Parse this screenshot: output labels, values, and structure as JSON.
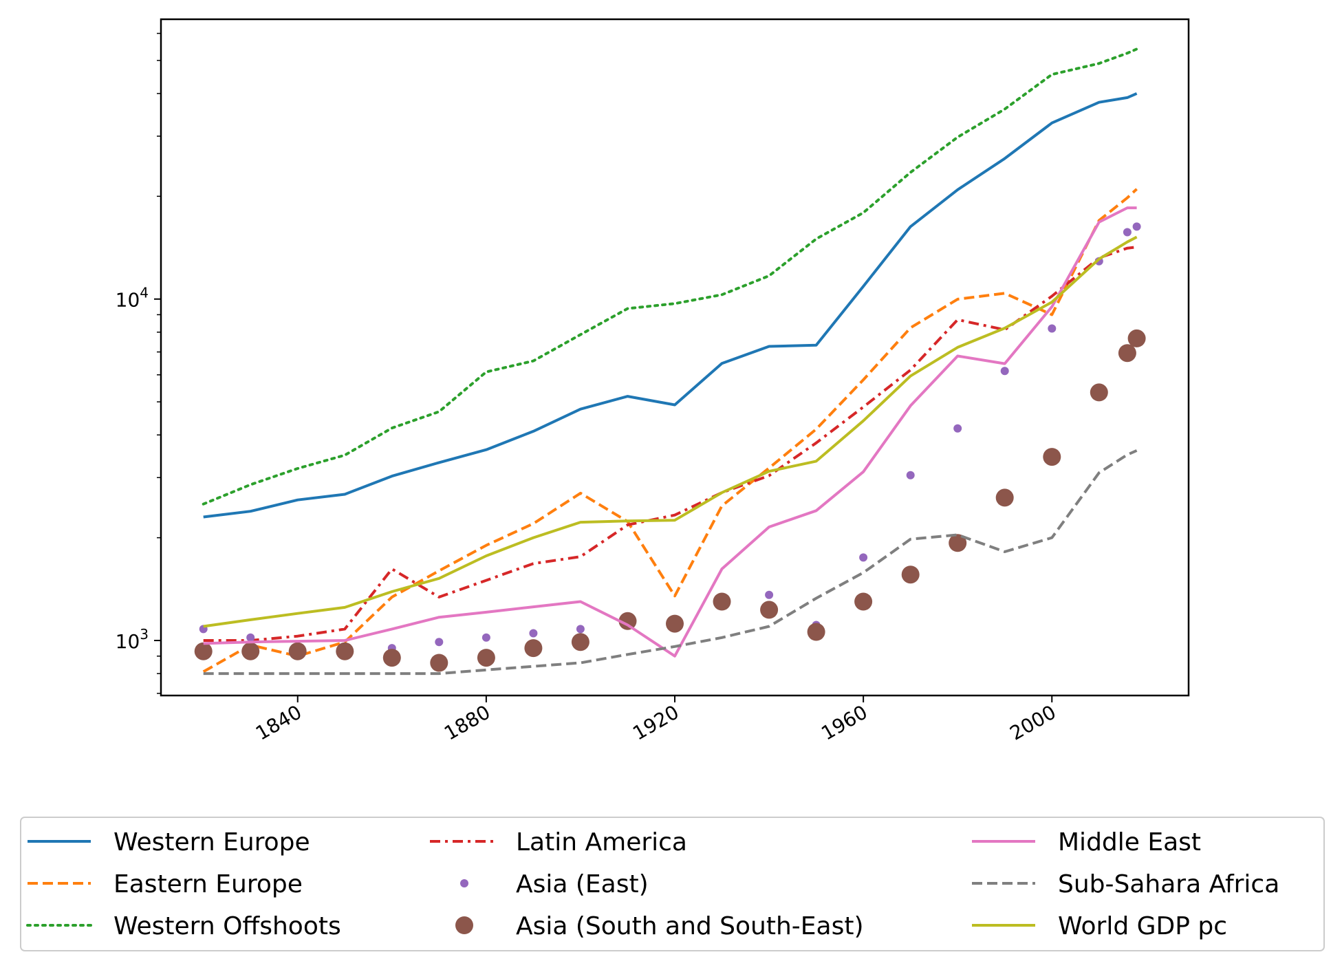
{
  "chart_data": {
    "type": "line",
    "title": "",
    "xlabel": "",
    "ylabel": "",
    "yscale": "log",
    "xlim": [
      1811,
      2029
    ],
    "ylim": [
      690,
      66000
    ],
    "xticks": [
      1840,
      1880,
      1920,
      1960,
      2000
    ],
    "xtick_labels": [
      "1840",
      "1880",
      "1920",
      "1960",
      "2000"
    ],
    "yticks": [
      1000,
      10000
    ],
    "ytick_labels": [
      {
        "base": "10",
        "exp": "3"
      },
      {
        "base": "10",
        "exp": "4"
      }
    ],
    "legend": {
      "location": "below",
      "columns": 3
    },
    "series": [
      {
        "name": "Western Europe",
        "color": "#1f77b4",
        "style": "solid",
        "x": [
          1820,
          1830,
          1840,
          1850,
          1860,
          1870,
          1880,
          1890,
          1900,
          1910,
          1920,
          1930,
          1940,
          1950,
          1960,
          1970,
          1980,
          1990,
          2000,
          2010,
          2016,
          2018
        ],
        "y": [
          2300,
          2390,
          2580,
          2680,
          3030,
          3320,
          3620,
          4100,
          4760,
          5190,
          4900,
          6480,
          7270,
          7330,
          10900,
          16300,
          20900,
          25800,
          32800,
          37700,
          38900,
          40000
        ]
      },
      {
        "name": "Eastern Europe",
        "color": "#ff7f0e",
        "style": "dashed",
        "x": [
          1820,
          1830,
          1840,
          1850,
          1860,
          1870,
          1880,
          1890,
          1900,
          1910,
          1920,
          1930,
          1940,
          1950,
          1960,
          1970,
          1980,
          1990,
          2000,
          2010,
          2016,
          2018
        ],
        "y": [
          810,
          970,
          900,
          990,
          1340,
          1600,
          1900,
          2200,
          2700,
          2230,
          1350,
          2480,
          3200,
          4160,
          5800,
          8240,
          9990,
          10400,
          9000,
          17000,
          19800,
          21000
        ]
      },
      {
        "name": "Western Offshoots",
        "color": "#2ca02c",
        "style": "dotted",
        "x": [
          1820,
          1830,
          1840,
          1850,
          1860,
          1870,
          1880,
          1890,
          1900,
          1910,
          1920,
          1930,
          1940,
          1950,
          1960,
          1970,
          1980,
          1990,
          2000,
          2010,
          2016,
          2018
        ],
        "y": [
          2510,
          2860,
          3190,
          3490,
          4190,
          4680,
          6120,
          6590,
          7870,
          9380,
          9700,
          10300,
          11700,
          15000,
          17900,
          23500,
          29800,
          36000,
          45500,
          49000,
          52500,
          54000
        ]
      },
      {
        "name": "Latin America",
        "color": "#d62728",
        "style": "dashdot",
        "x": [
          1820,
          1830,
          1840,
          1850,
          1860,
          1870,
          1880,
          1890,
          1900,
          1910,
          1920,
          1930,
          1940,
          1950,
          1960,
          1970,
          1980,
          1990,
          2000,
          2010,
          2016,
          2018
        ],
        "y": [
          1000,
          1000,
          1030,
          1080,
          1620,
          1340,
          1500,
          1680,
          1760,
          2180,
          2330,
          2710,
          3040,
          3790,
          4830,
          6200,
          8700,
          8130,
          10200,
          13200,
          14100,
          14200
        ]
      },
      {
        "name": "Asia (East)",
        "color": "#9467bd",
        "style": "dots",
        "x": [
          1820,
          1830,
          1840,
          1850,
          1860,
          1870,
          1880,
          1890,
          1900,
          1910,
          1920,
          1930,
          1940,
          1950,
          1960,
          1970,
          1980,
          1990,
          2000,
          2010,
          2016,
          2018
        ],
        "y": [
          1080,
          1020,
          960,
          950,
          950,
          990,
          1020,
          1050,
          1080,
          1150,
          1140,
          1310,
          1360,
          1110,
          1750,
          3050,
          4180,
          6160,
          8200,
          12900,
          15700,
          16300
        ]
      },
      {
        "name": "Asia (South and South-East)",
        "color": "#8c564b",
        "style": "bigdots",
        "x": [
          1820,
          1830,
          1840,
          1850,
          1860,
          1870,
          1880,
          1890,
          1900,
          1910,
          1920,
          1930,
          1940,
          1950,
          1960,
          1970,
          1980,
          1990,
          2000,
          2010,
          2016,
          2018
        ],
        "y": [
          930,
          930,
          930,
          930,
          890,
          860,
          890,
          950,
          990,
          1140,
          1120,
          1300,
          1230,
          1060,
          1300,
          1560,
          1930,
          2620,
          3450,
          5330,
          6950,
          7670
        ]
      },
      {
        "name": "Middle East",
        "color": "#e377c2",
        "style": "solid",
        "x": [
          1820,
          1830,
          1840,
          1850,
          1860,
          1870,
          1880,
          1890,
          1900,
          1910,
          1920,
          1930,
          1940,
          1950,
          1960,
          1970,
          1980,
          1990,
          2000,
          2010,
          2016,
          2018
        ],
        "y": [
          980,
          990,
          995,
          1000,
          1080,
          1170,
          1210,
          1255,
          1300,
          1110,
          900,
          1620,
          2150,
          2400,
          3120,
          4870,
          6810,
          6470,
          9500,
          16800,
          18500,
          18500
        ]
      },
      {
        "name": "Sub-Sahara Africa",
        "color": "#7f7f7f",
        "style": "dashed",
        "x": [
          1820,
          1830,
          1840,
          1850,
          1860,
          1870,
          1880,
          1890,
          1900,
          1910,
          1920,
          1930,
          1940,
          1950,
          1960,
          1970,
          1980,
          1990,
          2000,
          2010,
          2016,
          2018
        ],
        "y": [
          800,
          800,
          800,
          800,
          800,
          800,
          820,
          840,
          860,
          910,
          960,
          1020,
          1100,
          1330,
          1580,
          1980,
          2040,
          1820,
          2000,
          3100,
          3500,
          3600
        ]
      },
      {
        "name": "World GDP pc",
        "color": "#bcbd22",
        "style": "solid",
        "x": [
          1820,
          1830,
          1840,
          1850,
          1860,
          1870,
          1880,
          1890,
          1900,
          1910,
          1920,
          1930,
          1940,
          1950,
          1960,
          1970,
          1980,
          1990,
          2000,
          2010,
          2016,
          2018
        ],
        "y": [
          1100,
          1150,
          1200,
          1250,
          1390,
          1520,
          1770,
          2000,
          2220,
          2240,
          2250,
          2710,
          3130,
          3350,
          4400,
          5950,
          7220,
          8220,
          9800,
          13100,
          14700,
          15200
        ]
      }
    ]
  }
}
